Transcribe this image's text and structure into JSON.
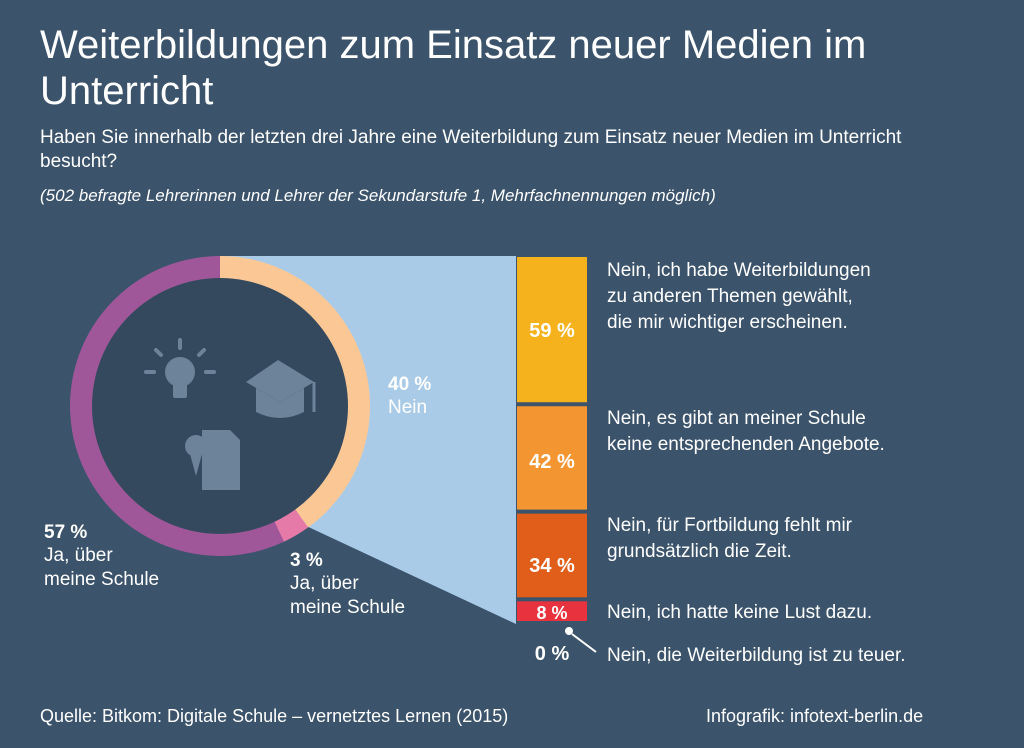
{
  "header": {
    "title": "Weiterbildungen zum Einsatz neuer Medien im Unterricht",
    "subtitle": "Haben Sie innerhalb der letzten drei Jahre eine Weiterbildung zum Einsatz neuer Medien im Unterricht besucht?",
    "note": "(502 befragte Lehrerinnen und Lehrer der Sekundarstufe 1, Mehrfachnennungen möglich)"
  },
  "footer": {
    "source": "Quelle: Bitkom: Digitale Schule – vernetztes Lernen (2015)",
    "credit": "Infografik: infotext-berlin.de"
  },
  "donut_labels": {
    "ja_ueber_schule": {
      "pct": "57 %",
      "line1": "Ja, über",
      "line2": "meine Schule"
    },
    "ja_andere": {
      "pct": "3 %",
      "line1": "Ja, über",
      "line2": "meine Schule"
    },
    "nein": {
      "pct": "40 %",
      "line1": "Nein"
    }
  },
  "bar_labels": [
    {
      "pct": "59 %",
      "text1": "Nein, ich habe Weiterbildungen",
      "text2": "zu anderen Themen gewählt,",
      "text3": "die mir wichtiger erscheinen."
    },
    {
      "pct": "42 %",
      "text1": "Nein, es gibt an meiner Schule",
      "text2": "keine entsprechenden Angebote."
    },
    {
      "pct": "34 %",
      "text1": "Nein, für Fortbildung fehlt mir",
      "text2": "grundsätzlich die Zeit."
    },
    {
      "pct": "8 %",
      "text1": "Nein, ich hatte keine Lust dazu."
    },
    {
      "pct": "0 %",
      "text1": "Nein, die Weiterbildung ist zu teuer."
    }
  ],
  "chart_data": [
    {
      "type": "pie",
      "categories": [
        "Ja, über meine Schule",
        "Ja, über meine Schule",
        "Nein"
      ],
      "values": [
        57,
        3,
        40
      ],
      "colors": [
        "#a0579a",
        "#e57aa9",
        "#fbc895"
      ]
    },
    {
      "type": "bar",
      "categories": [
        "Nein, ich habe Weiterbildungen zu anderen Themen gewählt, die mir wichtiger erscheinen.",
        "Nein, es gibt an meiner Schule keine entsprechenden Angebote.",
        "Nein, für Fortbildung fehlt mir grundsätzlich die Zeit.",
        "Nein, ich hatte keine Lust dazu.",
        "Nein, die Weiterbildung ist zu teuer."
      ],
      "values": [
        59,
        42,
        34,
        8,
        0
      ],
      "colors": [
        "#f6b21d",
        "#f39632",
        "#e05e1a",
        "#e8333f",
        "#ffffff"
      ]
    }
  ],
  "icons": [
    "lightbulb-icon",
    "graduation-cap-icon",
    "certificate-document-icon"
  ],
  "colors": {
    "background": "#3b536b",
    "inner_circle": "#34495e",
    "connector": "#a9cbe8"
  }
}
